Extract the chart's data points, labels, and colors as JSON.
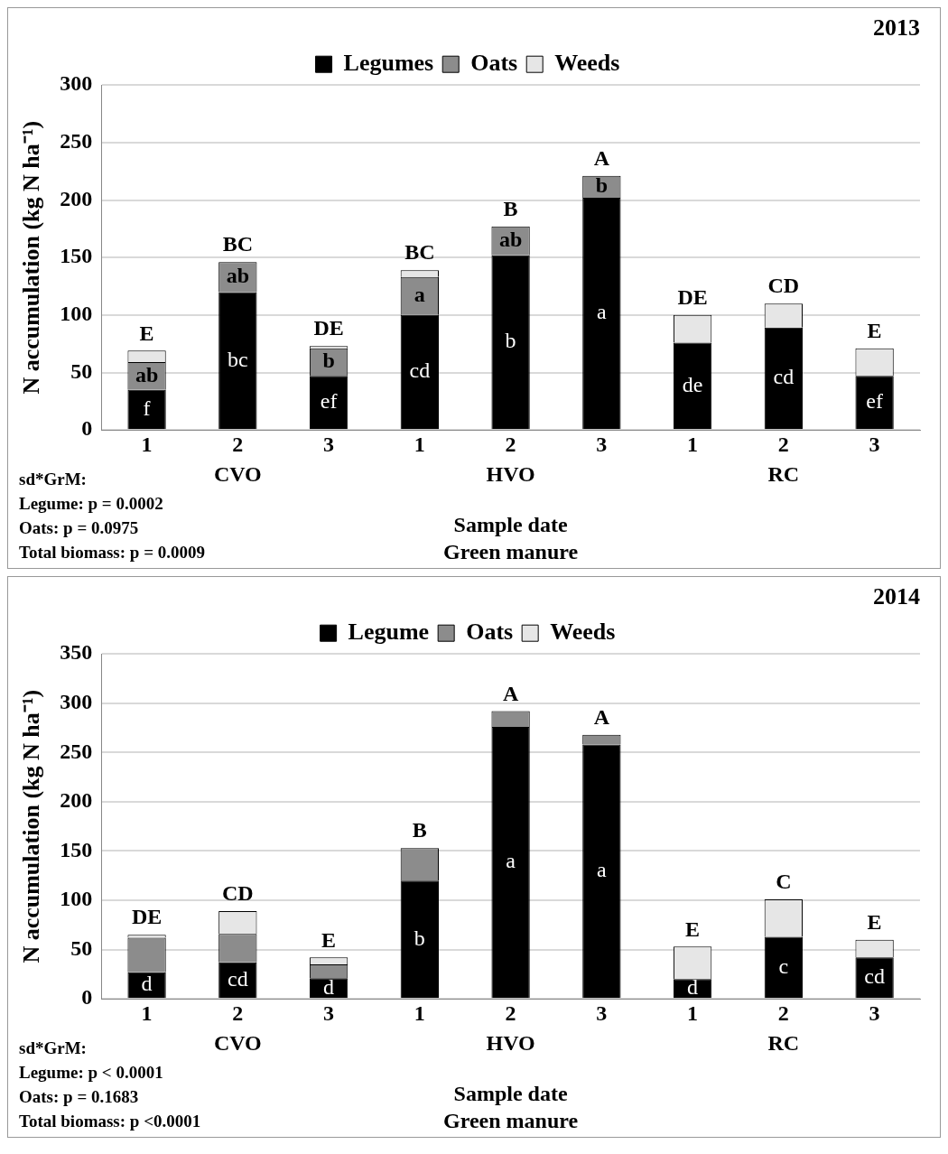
{
  "chart_data": [
    {
      "type": "bar",
      "title": "2013",
      "stacked": true,
      "categories": [
        "1",
        "2",
        "3",
        "1",
        "2",
        "3",
        "1",
        "2",
        "3"
      ],
      "series": [
        {
          "name": "Legumes",
          "color": "#000000",
          "values": [
            35,
            120,
            47,
            100,
            152,
            202,
            76,
            89,
            47
          ],
          "value_labels": [
            "f",
            "bc",
            "ef",
            "cd",
            "b",
            "a",
            "de",
            "cd",
            "ef"
          ]
        },
        {
          "name": "Oats",
          "color": "#8c8c8c",
          "values": [
            24,
            26,
            24,
            33,
            25,
            19,
            0,
            0,
            0
          ],
          "value_labels": [
            "ab",
            "ab",
            "b",
            "a",
            "ab",
            "b",
            null,
            null,
            null
          ]
        },
        {
          "name": "Weeds",
          "color": "#e6e6e6",
          "values": [
            10,
            0,
            2,
            6,
            0,
            0,
            24,
            21,
            24
          ]
        }
      ],
      "totals": [
        "E",
        "BC",
        "DE",
        "BC",
        "B",
        "A",
        "DE",
        "CD",
        "E"
      ],
      "ylabel": "N accumulation (kg N ha⁻¹)",
      "xlabel": "Sample date\nGreen manure",
      "ylim": [
        0,
        300
      ],
      "yticks": [
        0,
        50,
        100,
        150,
        200,
        250,
        300
      ],
      "grid": "y",
      "legend": "top",
      "annotations": [
        "CVO",
        "HVO",
        "RC",
        "sd*GrM:",
        "Legume: p = 0.0002",
        "Oats: p = 0.0975",
        "Total biomass: p = 0.0009"
      ]
    },
    {
      "type": "bar",
      "title": "2014",
      "stacked": true,
      "categories": [
        "1",
        "2",
        "3",
        "1",
        "2",
        "3",
        "1",
        "2",
        "3"
      ],
      "series": [
        {
          "name": "Legume",
          "color": "#000000",
          "values": [
            27,
            37,
            21,
            120,
            276,
            258,
            20,
            63,
            42
          ],
          "value_labels": [
            "d",
            "cd",
            "d",
            "b",
            "a",
            "a",
            "d",
            "c",
            "cd"
          ]
        },
        {
          "name": "Oats",
          "color": "#8c8c8c",
          "values": [
            35,
            29,
            14,
            33,
            16,
            10,
            0,
            0,
            0
          ]
        },
        {
          "name": "Weeds",
          "color": "#e6e6e6",
          "values": [
            3,
            23,
            7,
            0,
            0,
            0,
            33,
            38,
            18
          ]
        }
      ],
      "totals": [
        "DE",
        "CD",
        "E",
        "B",
        "A",
        "A",
        "E",
        "C",
        "E"
      ],
      "ylabel": "N accumulation (kg N ha⁻¹)",
      "xlabel": "Sample date\nGreen manure",
      "ylim": [
        0,
        350
      ],
      "yticks": [
        0,
        50,
        100,
        150,
        200,
        250,
        300,
        350
      ],
      "grid": "y",
      "legend": "top",
      "annotations": [
        "CVO",
        "HVO",
        "RC",
        "sd*GrM:",
        "Legume: p < 0.0001",
        "Oats: p = 0.1683",
        "Total biomass: p <0.0001"
      ]
    }
  ]
}
